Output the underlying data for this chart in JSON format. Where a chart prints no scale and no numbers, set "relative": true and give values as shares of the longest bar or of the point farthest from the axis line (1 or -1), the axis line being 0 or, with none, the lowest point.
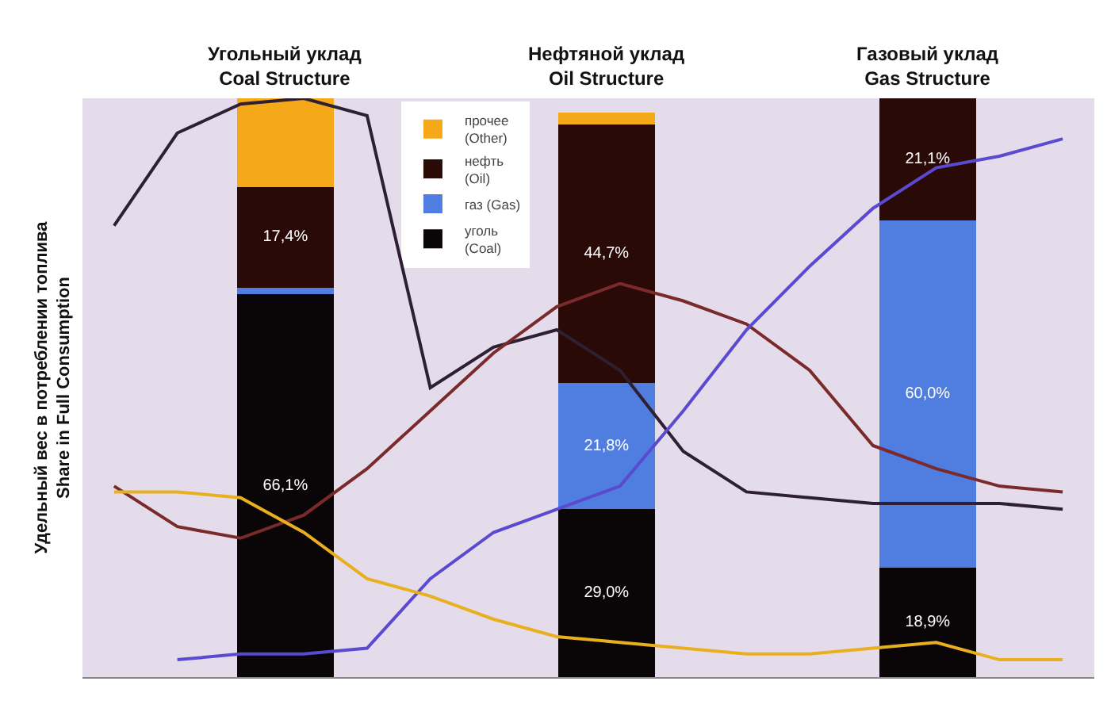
{
  "chart_data": [
    {
      "type": "line",
      "relative": true,
      "ylabel": "Удельный вес в потреблении топлива\nShare in Full Consumption",
      "categories": [
        null,
        null,
        null,
        null,
        null,
        null,
        null,
        null,
        null,
        null,
        null,
        null,
        null,
        null,
        null,
        null
      ],
      "series": [
        {
          "color": "#2e1f33",
          "values": [
            0.78,
            0.94,
            0.99,
            1.0,
            0.97,
            0.5,
            0.57,
            0.6,
            0.53,
            0.39,
            0.32,
            0.31,
            0.3,
            0.3,
            0.3,
            0.29
          ]
        },
        {
          "color": "#7a2a2a",
          "values": [
            0.33,
            0.26,
            0.24,
            0.28,
            0.36,
            0.46,
            0.56,
            0.64,
            0.68,
            0.65,
            0.61,
            0.53,
            0.4,
            0.36,
            0.33,
            0.32
          ]
        },
        {
          "color": "#5a4ad0",
          "values": [
            null,
            0.03,
            0.04,
            0.04,
            0.05,
            0.17,
            0.25,
            0.29,
            0.33,
            0.46,
            0.6,
            0.71,
            0.81,
            0.88,
            0.9,
            0.93
          ]
        },
        {
          "color": "#e8b020",
          "values": [
            0.32,
            0.32,
            0.31,
            0.25,
            0.17,
            0.14,
            0.1,
            0.07,
            0.06,
            0.05,
            0.04,
            0.04,
            0.05,
            0.06,
            0.03,
            0.03
          ]
        }
      ]
    },
    {
      "type": "bar",
      "stacked": true,
      "legend": "top",
      "annotations": [
        "Угольный уклад\nCoal Structure",
        "Нефтяной уклад\nOil Structure",
        "Газовый уклад\nGas Structure"
      ],
      "categories": [
        null,
        null,
        null
      ],
      "series": [
        {
          "name": "уголь\n(Coal)",
          "color": "#0a0506",
          "values": [
            66.1,
            29.0,
            18.9
          ],
          "value_labels": [
            "66,1%",
            "29,0%",
            "18,9%"
          ]
        },
        {
          "name": "газ (Gas)",
          "color": "#4f7de0",
          "values": [
            1.2,
            21.8,
            60.0
          ],
          "value_labels": [
            null,
            "21,8%",
            "60,0%"
          ]
        },
        {
          "name": "нефть\n(Oil)",
          "color": "#2a0a06",
          "values": [
            17.4,
            44.7,
            21.1
          ],
          "value_labels": [
            "17,4%",
            "44,7%",
            "21,1%"
          ]
        },
        {
          "name": "прочее\n(Other)",
          "color": "#f5a818",
          "values": [
            15.3,
            2.0,
            null
          ]
        }
      ]
    }
  ]
}
